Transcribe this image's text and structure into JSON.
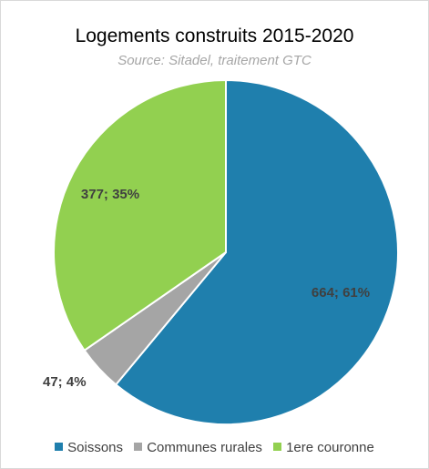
{
  "chart_data": {
    "type": "pie",
    "title": "Logements construits 2015-2020",
    "subtitle": "Source: Sitadel, traitement GTC",
    "slices": [
      {
        "name": "Soissons",
        "value": 664,
        "percent": 61,
        "label": "664; 61%",
        "color": "#1f7fad"
      },
      {
        "name": "Communes rurales",
        "value": 47,
        "percent": 4,
        "label": "47; 4%",
        "color": "#a5a5a5"
      },
      {
        "name": "1ere couronne",
        "value": 377,
        "percent": 35,
        "label": "377; 35%",
        "color": "#92d050"
      }
    ],
    "legend_position": "bottom",
    "start_angle": "12 o'clock",
    "direction": "clockwise"
  }
}
